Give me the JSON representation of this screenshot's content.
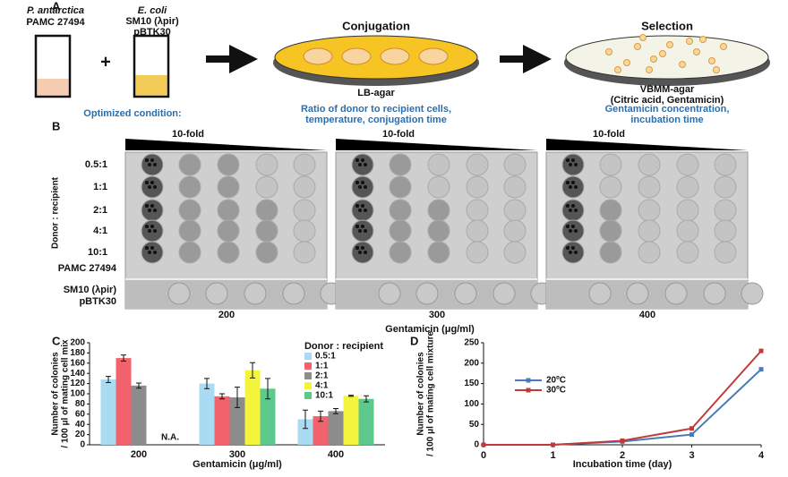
{
  "panel_a": {
    "label": "A",
    "tube1": [
      "P. antarctica",
      "PAMC 27494"
    ],
    "plus": "+",
    "tube2": [
      "E. coli",
      "SM10 (λpir)",
      "pBTK30"
    ],
    "conjugation": "Conjugation",
    "lb_agar": "LB-agar",
    "selection": "Selection",
    "vbmm": [
      "VBMM-agar",
      "(Citric acid, Gentamicin)"
    ],
    "optimized": "Optimized condition:",
    "conj_params": [
      "Ratio of donor to recipient cells,",
      "temperature, conjugation time"
    ],
    "sel_params": [
      "Gentamicin concentration,",
      "incubation time"
    ]
  },
  "panel_b": {
    "label": "B",
    "dilution": [
      "10-fold",
      "10-fold",
      "10-fold"
    ],
    "y_label": "Donor : recipient",
    "rows": [
      "0.5:1",
      "1:1",
      "2:1",
      "4:1",
      "10:1",
      "PAMC 27494"
    ],
    "control": [
      "SM10 (λpir)",
      "pBTK30"
    ],
    "concentrations": [
      "200",
      "300",
      "400"
    ],
    "x_label": "Gentamicin (μg/ml)"
  },
  "chart_data": [
    {
      "type": "bar",
      "label": "C",
      "categories": [
        "200",
        "300",
        "400"
      ],
      "x_label": "Gentamicin (μg/ml)",
      "y_label": [
        "Number of colonies",
        "/ 100 μl of mating cell mix"
      ],
      "legend_title": "Donor : recipient",
      "annotation": "N.A.",
      "ylim": [
        0,
        200
      ],
      "yticks": [
        0,
        20,
        40,
        60,
        80,
        100,
        120,
        140,
        160,
        180,
        200
      ],
      "series": [
        {
          "name": "0.5:1",
          "color": "#a9dcf2",
          "values": [
            128,
            120,
            50
          ],
          "errors": [
            6,
            10,
            18
          ]
        },
        {
          "name": "1:1",
          "color": "#f2626c",
          "values": [
            170,
            95,
            56
          ],
          "errors": [
            6,
            5,
            10
          ]
        },
        {
          "name": "2:1",
          "color": "#8c8c8c",
          "values": [
            116,
            93,
            66
          ],
          "errors": [
            5,
            20,
            5
          ]
        },
        {
          "name": "4:1",
          "color": "#f4f43c",
          "values": [
            null,
            146,
            96
          ],
          "errors": [
            null,
            15,
            1
          ]
        },
        {
          "name": "10:1",
          "color": "#5ec98c",
          "values": [
            null,
            110,
            90
          ],
          "errors": [
            null,
            20,
            6
          ]
        }
      ]
    },
    {
      "type": "line",
      "label": "D",
      "x": [
        0,
        1,
        2,
        3,
        4
      ],
      "x_label": "Incubation time (day)",
      "y_label": [
        "Number of colonies",
        "/ 100 μl of mating cell mixture"
      ],
      "xlim": [
        0,
        4
      ],
      "xticks": [
        0,
        1,
        2,
        3,
        4
      ],
      "ylim": [
        0,
        250
      ],
      "yticks": [
        0,
        50,
        100,
        150,
        200,
        250
      ],
      "series": [
        {
          "name": "20ºC",
          "color": "#4a7ab8",
          "values": [
            0,
            0,
            8,
            25,
            185
          ]
        },
        {
          "name": "30ºC",
          "color": "#c0393b",
          "values": [
            0,
            0,
            10,
            40,
            230
          ]
        }
      ]
    }
  ]
}
